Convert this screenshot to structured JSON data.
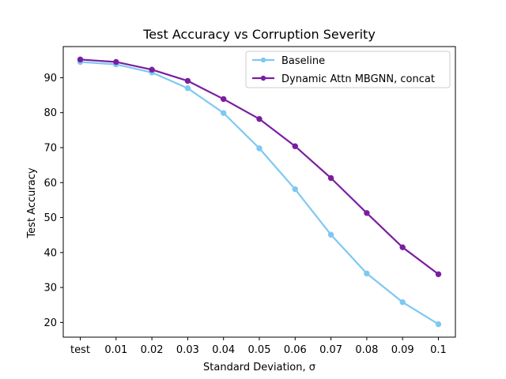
{
  "chart_data": {
    "type": "line",
    "title": "Test Accuracy vs Corruption Severity",
    "xlabel": "Standard Deviation, σ",
    "ylabel": "Test Accuracy",
    "categories": [
      "test",
      "0.01",
      "0.02",
      "0.03",
      "0.04",
      "0.05",
      "0.06",
      "0.07",
      "0.08",
      "0.09",
      "0.1"
    ],
    "ylim": [
      15.8,
      98.9
    ],
    "yticks": [
      20,
      30,
      40,
      50,
      60,
      70,
      80,
      90
    ],
    "grid": false,
    "legend_position": "top-right",
    "series": [
      {
        "name": "Baseline",
        "color": "#7ec8f2",
        "values": [
          94.5,
          93.8,
          91.5,
          87.0,
          79.9,
          69.8,
          58.1,
          45.1,
          34.0,
          25.8,
          19.5
        ]
      },
      {
        "name": "Dynamic Attn MBGNN, concat",
        "color": "#7a1ea1",
        "values": [
          95.2,
          94.5,
          92.3,
          89.1,
          83.9,
          78.2,
          70.4,
          61.3,
          51.3,
          41.5,
          33.8
        ]
      }
    ]
  }
}
